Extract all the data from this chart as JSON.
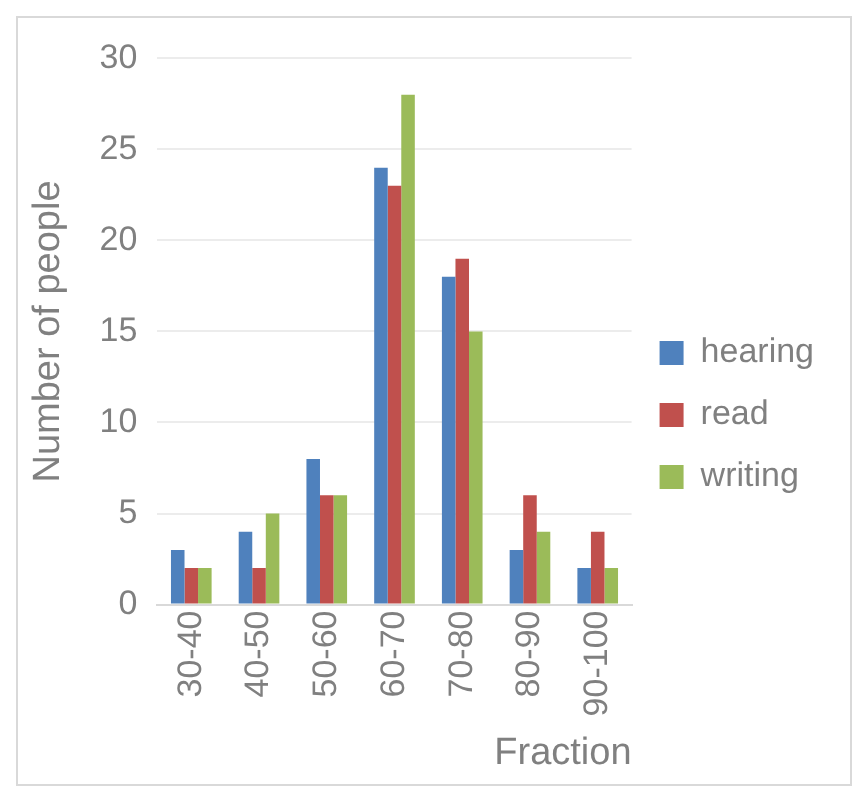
{
  "chart_data": {
    "type": "bar",
    "xlabel": "Fraction",
    "ylabel": "Number of people",
    "categories": [
      "30-40",
      "40-50",
      "50-60",
      "60-70",
      "70-80",
      "80-90",
      "90-100"
    ],
    "series": [
      {
        "name": "hearing",
        "color": "#4f81bd",
        "values": [
          3,
          4,
          8,
          24,
          18,
          3,
          2
        ]
      },
      {
        "name": "read",
        "color": "#c0504d",
        "values": [
          2,
          2,
          6,
          23,
          19,
          6,
          4
        ]
      },
      {
        "name": "writing",
        "color": "#9bbb59",
        "values": [
          2,
          5,
          6,
          28,
          15,
          4,
          2
        ]
      }
    ],
    "ylim": [
      0,
      30
    ],
    "yticks": [
      0,
      5,
      10,
      15,
      20,
      25,
      30
    ],
    "grid": "y",
    "legend": "right"
  }
}
